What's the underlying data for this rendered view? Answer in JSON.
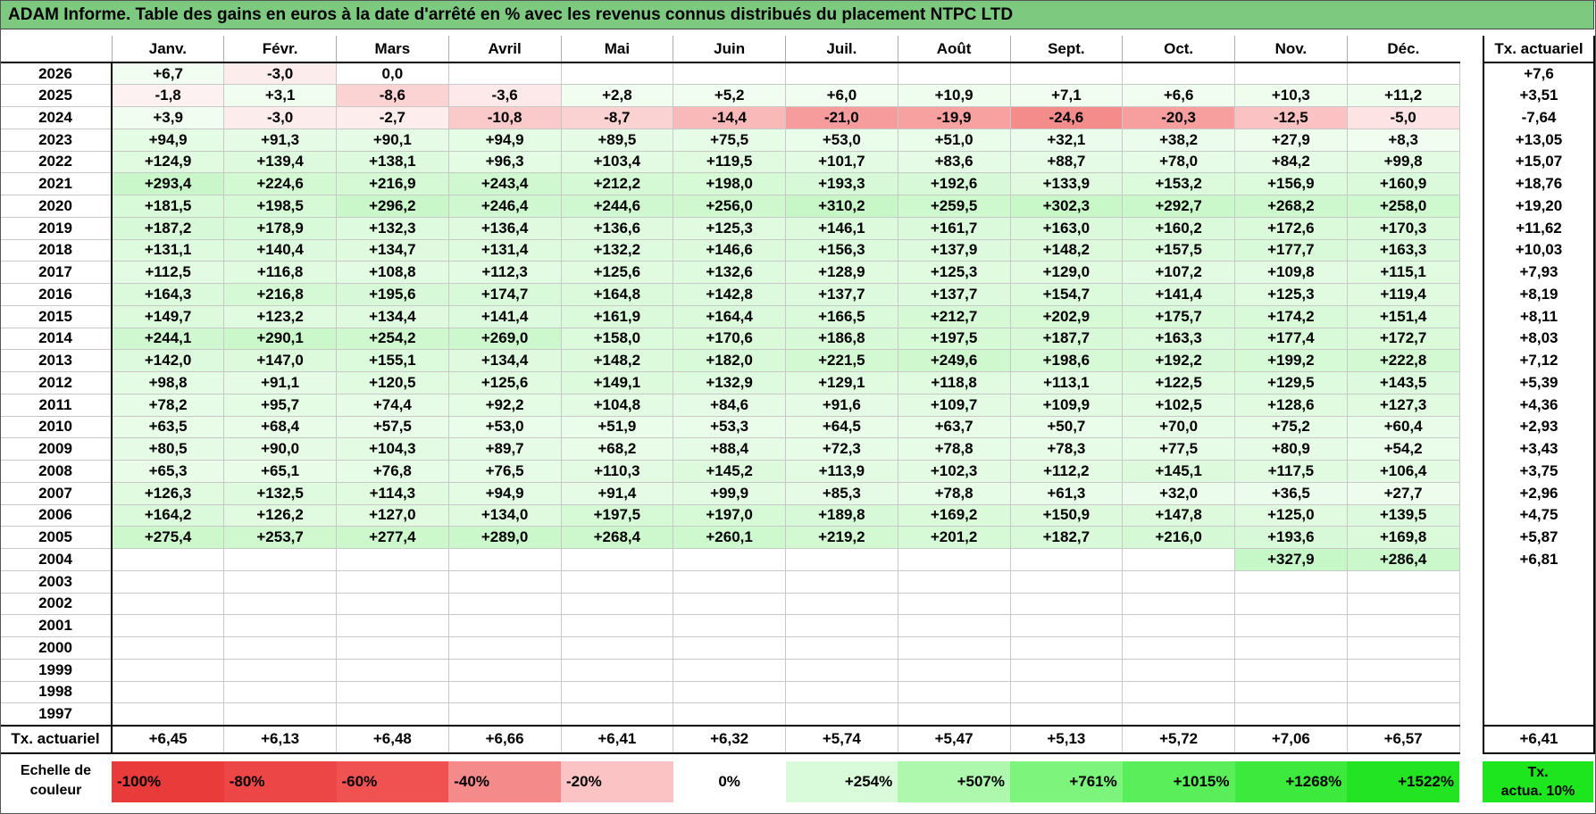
{
  "title": "ADAM Informe. Table des gains en euros à la date d'arrêté en % avec les revenus connus distribués du placement NTPC LTD",
  "months": [
    "Janv.",
    "Févr.",
    "Mars",
    "Avril",
    "Mai",
    "Juin",
    "Juil.",
    "Août",
    "Sept.",
    "Oct.",
    "Nov.",
    "Déc."
  ],
  "side_header": "Tx. actuariel",
  "rows": [
    {
      "year": "2026",
      "vals": [
        "+6,7",
        "-3,0",
        "0,0",
        "",
        "",
        "",
        "",
        "",
        "",
        "",
        "",
        ""
      ],
      "side": "+7,6"
    },
    {
      "year": "2025",
      "vals": [
        "-1,8",
        "+3,1",
        "-8,6",
        "-3,6",
        "+2,8",
        "+5,2",
        "+6,0",
        "+10,9",
        "+7,1",
        "+6,6",
        "+10,3",
        "+11,2"
      ],
      "side": "+3,51"
    },
    {
      "year": "2024",
      "vals": [
        "+3,9",
        "-3,0",
        "-2,7",
        "-10,8",
        "-8,7",
        "-14,4",
        "-21,0",
        "-19,9",
        "-24,6",
        "-20,3",
        "-12,5",
        "-5,0"
      ],
      "side": "-7,64"
    },
    {
      "year": "2023",
      "vals": [
        "+94,9",
        "+91,3",
        "+90,1",
        "+94,9",
        "+89,5",
        "+75,5",
        "+53,0",
        "+51,0",
        "+32,1",
        "+38,2",
        "+27,9",
        "+8,3"
      ],
      "side": "+13,05"
    },
    {
      "year": "2022",
      "vals": [
        "+124,9",
        "+139,4",
        "+138,1",
        "+96,3",
        "+103,4",
        "+119,5",
        "+101,7",
        "+83,6",
        "+88,7",
        "+78,0",
        "+84,2",
        "+99,8"
      ],
      "side": "+15,07"
    },
    {
      "year": "2021",
      "vals": [
        "+293,4",
        "+224,6",
        "+216,9",
        "+243,4",
        "+212,2",
        "+198,0",
        "+193,3",
        "+192,6",
        "+133,9",
        "+153,2",
        "+156,9",
        "+160,9"
      ],
      "side": "+18,76"
    },
    {
      "year": "2020",
      "vals": [
        "+181,5",
        "+198,5",
        "+296,2",
        "+246,4",
        "+244,6",
        "+256,0",
        "+310,2",
        "+259,5",
        "+302,3",
        "+292,7",
        "+268,2",
        "+258,0"
      ],
      "side": "+19,20"
    },
    {
      "year": "2019",
      "vals": [
        "+187,2",
        "+178,9",
        "+132,3",
        "+136,4",
        "+136,6",
        "+125,3",
        "+146,1",
        "+161,7",
        "+163,0",
        "+160,2",
        "+172,6",
        "+170,3"
      ],
      "side": "+11,62"
    },
    {
      "year": "2018",
      "vals": [
        "+131,1",
        "+140,4",
        "+134,7",
        "+131,4",
        "+132,2",
        "+146,6",
        "+156,3",
        "+137,9",
        "+148,2",
        "+157,5",
        "+177,7",
        "+163,3"
      ],
      "side": "+10,03"
    },
    {
      "year": "2017",
      "vals": [
        "+112,5",
        "+116,8",
        "+108,8",
        "+112,3",
        "+125,6",
        "+132,6",
        "+128,9",
        "+125,3",
        "+129,0",
        "+107,2",
        "+109,8",
        "+115,1"
      ],
      "side": "+7,93"
    },
    {
      "year": "2016",
      "vals": [
        "+164,3",
        "+216,8",
        "+195,6",
        "+174,7",
        "+164,8",
        "+142,8",
        "+137,7",
        "+137,7",
        "+154,7",
        "+141,4",
        "+125,3",
        "+119,4"
      ],
      "side": "+8,19"
    },
    {
      "year": "2015",
      "vals": [
        "+149,7",
        "+123,2",
        "+134,4",
        "+141,4",
        "+161,9",
        "+164,4",
        "+166,5",
        "+212,7",
        "+202,9",
        "+175,7",
        "+174,2",
        "+151,4"
      ],
      "side": "+8,11"
    },
    {
      "year": "2014",
      "vals": [
        "+244,1",
        "+290,1",
        "+254,2",
        "+269,0",
        "+158,0",
        "+170,6",
        "+186,8",
        "+197,5",
        "+187,7",
        "+163,3",
        "+177,4",
        "+172,7"
      ],
      "side": "+8,03"
    },
    {
      "year": "2013",
      "vals": [
        "+142,0",
        "+147,0",
        "+155,1",
        "+134,4",
        "+148,2",
        "+182,0",
        "+221,5",
        "+249,6",
        "+198,6",
        "+192,2",
        "+199,2",
        "+222,8"
      ],
      "side": "+7,12"
    },
    {
      "year": "2012",
      "vals": [
        "+98,8",
        "+91,1",
        "+120,5",
        "+125,6",
        "+149,1",
        "+132,9",
        "+129,1",
        "+118,8",
        "+113,1",
        "+122,5",
        "+129,5",
        "+143,5"
      ],
      "side": "+5,39"
    },
    {
      "year": "2011",
      "vals": [
        "+78,2",
        "+95,7",
        "+74,4",
        "+92,2",
        "+104,8",
        "+84,6",
        "+91,6",
        "+109,7",
        "+109,9",
        "+102,5",
        "+128,6",
        "+127,3"
      ],
      "side": "+4,36"
    },
    {
      "year": "2010",
      "vals": [
        "+63,5",
        "+68,4",
        "+57,5",
        "+53,0",
        "+51,9",
        "+53,3",
        "+64,5",
        "+63,7",
        "+50,7",
        "+70,0",
        "+75,2",
        "+60,4"
      ],
      "side": "+2,93"
    },
    {
      "year": "2009",
      "vals": [
        "+80,5",
        "+90,0",
        "+104,3",
        "+89,7",
        "+68,2",
        "+88,4",
        "+72,3",
        "+78,8",
        "+78,3",
        "+77,5",
        "+80,9",
        "+54,2"
      ],
      "side": "+3,43"
    },
    {
      "year": "2008",
      "vals": [
        "+65,3",
        "+65,1",
        "+76,8",
        "+76,5",
        "+110,3",
        "+145,2",
        "+113,9",
        "+102,3",
        "+112,2",
        "+145,1",
        "+117,5",
        "+106,4"
      ],
      "side": "+3,75"
    },
    {
      "year": "2007",
      "vals": [
        "+126,3",
        "+132,5",
        "+114,3",
        "+94,9",
        "+91,4",
        "+99,9",
        "+85,3",
        "+78,8",
        "+61,3",
        "+32,0",
        "+36,5",
        "+27,7"
      ],
      "side": "+2,96"
    },
    {
      "year": "2006",
      "vals": [
        "+164,2",
        "+126,2",
        "+127,0",
        "+134,0",
        "+197,5",
        "+197,0",
        "+189,8",
        "+169,2",
        "+150,9",
        "+147,8",
        "+125,0",
        "+139,5"
      ],
      "side": "+4,75"
    },
    {
      "year": "2005",
      "vals": [
        "+275,4",
        "+253,7",
        "+277,4",
        "+289,0",
        "+268,4",
        "+260,1",
        "+219,2",
        "+201,2",
        "+182,7",
        "+216,0",
        "+193,6",
        "+169,8"
      ],
      "side": "+5,87"
    },
    {
      "year": "2004",
      "vals": [
        "",
        "",
        "",
        "",
        "",
        "",
        "",
        "",
        "",
        "",
        "+327,9",
        "+286,4"
      ],
      "side": "+6,81"
    },
    {
      "year": "2003",
      "vals": [
        "",
        "",
        "",
        "",
        "",
        "",
        "",
        "",
        "",
        "",
        "",
        ""
      ],
      "side": ""
    },
    {
      "year": "2002",
      "vals": [
        "",
        "",
        "",
        "",
        "",
        "",
        "",
        "",
        "",
        "",
        "",
        ""
      ],
      "side": ""
    },
    {
      "year": "2001",
      "vals": [
        "",
        "",
        "",
        "",
        "",
        "",
        "",
        "",
        "",
        "",
        "",
        ""
      ],
      "side": ""
    },
    {
      "year": "2000",
      "vals": [
        "",
        "",
        "",
        "",
        "",
        "",
        "",
        "",
        "",
        "",
        "",
        ""
      ],
      "side": ""
    },
    {
      "year": "1999",
      "vals": [
        "",
        "",
        "",
        "",
        "",
        "",
        "",
        "",
        "",
        "",
        "",
        ""
      ],
      "side": ""
    },
    {
      "year": "1998",
      "vals": [
        "",
        "",
        "",
        "",
        "",
        "",
        "",
        "",
        "",
        "",
        "",
        ""
      ],
      "side": ""
    },
    {
      "year": "1997",
      "vals": [
        "",
        "",
        "",
        "",
        "",
        "",
        "",
        "",
        "",
        "",
        "",
        ""
      ],
      "side": ""
    }
  ],
  "footer": {
    "label": "Tx. actuariel",
    "vals": [
      "+6,45",
      "+6,13",
      "+6,48",
      "+6,66",
      "+6,41",
      "+6,32",
      "+5,74",
      "+5,47",
      "+5,13",
      "+5,72",
      "+7,06",
      "+6,57"
    ],
    "side": "+6,41"
  },
  "scale": {
    "label_line1": "Echelle de",
    "label_line2": "couleur",
    "items": [
      {
        "text": "-100%",
        "color": "#ea3b3b",
        "kind": "neg"
      },
      {
        "text": "-80%",
        "color": "#ed4646",
        "kind": "neg"
      },
      {
        "text": "-60%",
        "color": "#f05252",
        "kind": "neg"
      },
      {
        "text": "-40%",
        "color": "#f58a8a",
        "kind": "neg"
      },
      {
        "text": "-20%",
        "color": "#fbc3c3",
        "kind": "neg"
      },
      {
        "text": "0%",
        "color": "#ffffff",
        "kind": "zero"
      },
      {
        "text": "+254%",
        "color": "#d9fbd9",
        "kind": "pos"
      },
      {
        "text": "+507%",
        "color": "#aef8ae",
        "kind": "pos"
      },
      {
        "text": "+761%",
        "color": "#7df57d",
        "kind": "pos"
      },
      {
        "text": "+1015%",
        "color": "#5aef5a",
        "kind": "pos"
      },
      {
        "text": "+1268%",
        "color": "#3ee93e",
        "kind": "pos"
      },
      {
        "text": "+1522%",
        "color": "#22e422",
        "kind": "pos"
      }
    ],
    "target_line1": "Tx.",
    "target_line2": "actua. 10%",
    "target_color": "#1ee61e"
  }
}
